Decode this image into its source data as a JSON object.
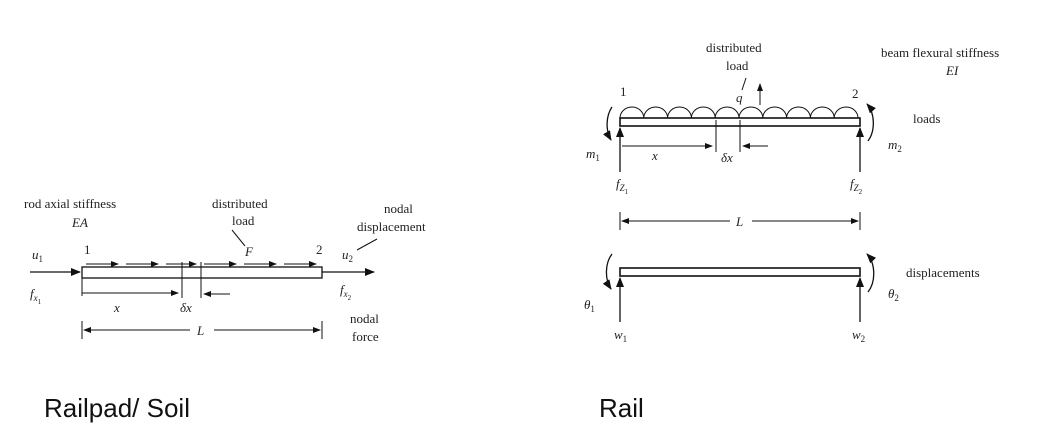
{
  "rod": {
    "stiffness_label": "rod axial stiffness",
    "stiffness_symbol": "EA",
    "dist_load_line1": "distributed",
    "dist_load_line2": "load",
    "nodal_disp_line1": "nodal",
    "nodal_disp_line2": "displacement",
    "nodal_force_line1": "nodal",
    "nodal_force_line2": "force",
    "node1": "1",
    "node2": "2",
    "u1": "u",
    "u1_sub": "1",
    "u2": "u",
    "u2_sub": "2",
    "fx1": "f",
    "fx1_sub": "x",
    "fx1_subsub": "1",
    "fx2": "f",
    "fx2_sub": "x",
    "fx2_subsub": "2",
    "force_F": "F",
    "x_label": "x",
    "dx_label": "δx",
    "L_label": "L",
    "caption": "Railpad/ Soil"
  },
  "beam": {
    "stiffness_line1": "beam flexural stiffness",
    "stiffness_symbol": "EI",
    "dist_load_line1": "distributed",
    "dist_load_line2": "load",
    "q_label": "q",
    "loads_label": "loads",
    "displacements_label": "displacements",
    "node1": "1",
    "node2": "2",
    "m1": "m",
    "m1_sub": "1",
    "m2": "m",
    "m2_sub": "2",
    "fz1": "f",
    "fz1_sub": "Z",
    "fz1_subsub": "1",
    "fz2": "f",
    "fz2_sub": "Z",
    "fz2_subsub": "2",
    "x_label": "x",
    "dx_label": "δx",
    "L_label": "L",
    "theta1": "θ",
    "theta1_sub": "1",
    "theta2": "θ",
    "theta2_sub": "2",
    "w1": "w",
    "w1_sub": "1",
    "w2": "w",
    "w2_sub": "2",
    "caption": "Rail"
  }
}
